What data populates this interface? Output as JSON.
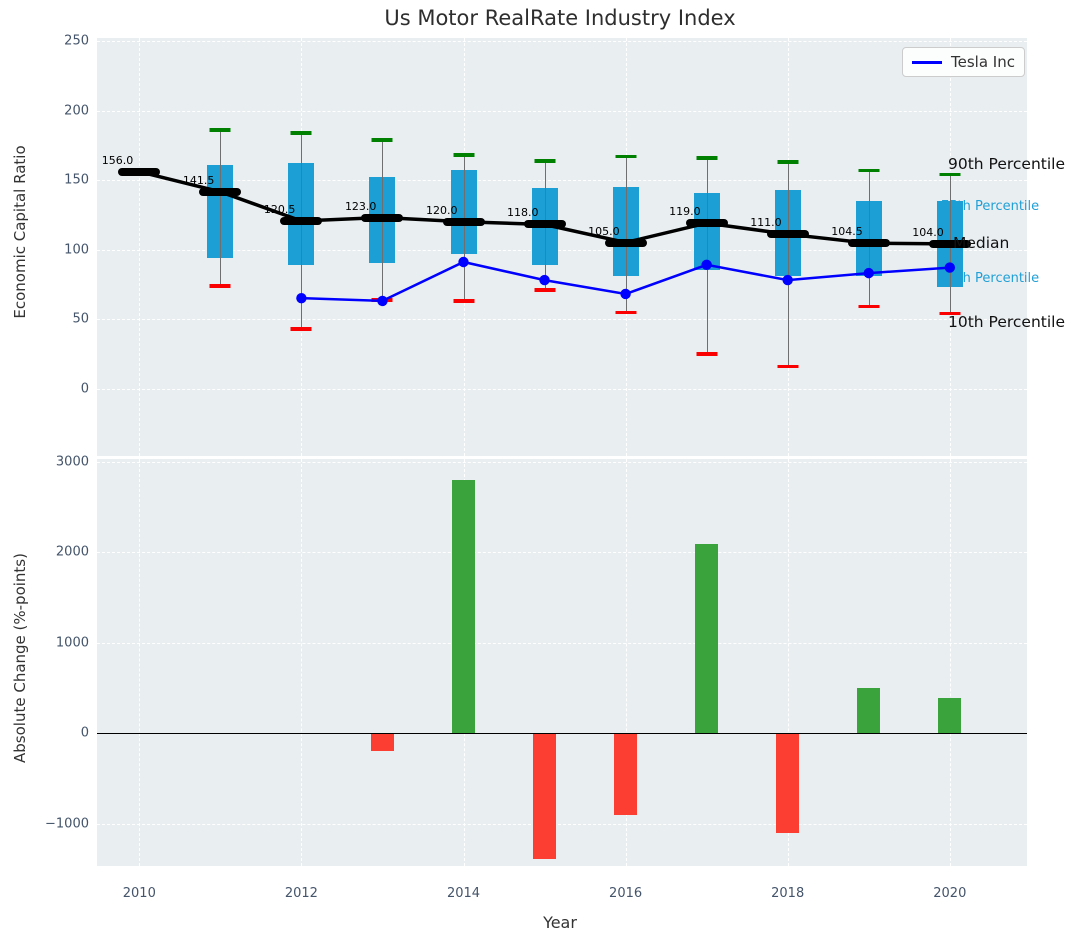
{
  "colors": {
    "plot_bg": "#e9eef1",
    "grid": "#ffffff",
    "box_fill": "#1c9fd4",
    "whisker_line": "#6f6f6f",
    "cap_high_green": "#008000",
    "cap_low_red": "#fb0000",
    "median_black": "#000000",
    "tesla_blue": "#0000ff",
    "bar_positive_green": "#3ba33b",
    "bar_negative_red": "#fc3d32",
    "tick_label": "#44546a",
    "cyan_label": "#21a0d6"
  },
  "chart_data": [
    {
      "type": "boxplot",
      "title": "Us Motor RealRate Industry Index",
      "ylabel": "Economic Capital Ratio",
      "grid": true,
      "legend_position": "upper right",
      "ylim": [
        -48,
        252
      ],
      "ytick_values": [
        0,
        50,
        100,
        150,
        200,
        250
      ],
      "ytick_labels": [
        "0",
        "50",
        "100",
        "150",
        "200",
        "250"
      ],
      "years": [
        2010,
        2011,
        2012,
        2013,
        2014,
        2015,
        2016,
        2017,
        2018,
        2019,
        2020
      ],
      "median": [
        156.0,
        141.5,
        120.5,
        123.0,
        120.0,
        118.0,
        105.0,
        119.0,
        111.0,
        104.5,
        104.0
      ],
      "median_labels": [
        "156.0",
        "141.5",
        "120.5",
        "123.0",
        "120.0",
        "118.0",
        "105.0",
        "119.0",
        "111.0",
        "104.5",
        "104.0"
      ],
      "q75": [
        null,
        161,
        162,
        152,
        157,
        144,
        145,
        141,
        143,
        135,
        135
      ],
      "q25": [
        null,
        94,
        89,
        90,
        97,
        89,
        81,
        85,
        81,
        81,
        73
      ],
      "p90": [
        null,
        186,
        184,
        179,
        168,
        164,
        167,
        166,
        163,
        157,
        154
      ],
      "p10": [
        null,
        74,
        43,
        64,
        63,
        71,
        55,
        25,
        16,
        59,
        54
      ],
      "series": [
        {
          "name": "Tesla Inc",
          "years": [
            2012,
            2013,
            2014,
            2015,
            2016,
            2017,
            2018,
            2019,
            2020
          ],
          "values": [
            65,
            63,
            91,
            78,
            68,
            89,
            78,
            83,
            87
          ]
        }
      ],
      "legend": {
        "tesla_label": "Tesla Inc"
      },
      "right_labels": {
        "p90": "90th Percentile",
        "p75": "75th Percentile",
        "median": "Median",
        "p25": "25th Percentile",
        "p10": "10th Percentile"
      }
    },
    {
      "type": "bar",
      "ylabel": "Absolute Change (%-points)",
      "xlabel": "Year",
      "grid": true,
      "ylim": [
        -1460,
        3030
      ],
      "ytick_values": [
        -1000,
        0,
        1000,
        2000,
        3000
      ],
      "ytick_labels": [
        "−1000",
        "0",
        "1000",
        "2000",
        "3000"
      ],
      "xtick_values": [
        2010,
        2012,
        2014,
        2016,
        2018,
        2020
      ],
      "xtick_labels": [
        "2010",
        "2012",
        "2014",
        "2016",
        "2018",
        "2020"
      ],
      "categories": [
        2013,
        2014,
        2015,
        2016,
        2017,
        2018,
        2019,
        2020
      ],
      "values": [
        -200,
        2800,
        -1390,
        -900,
        2090,
        -1100,
        500,
        390
      ]
    }
  ]
}
